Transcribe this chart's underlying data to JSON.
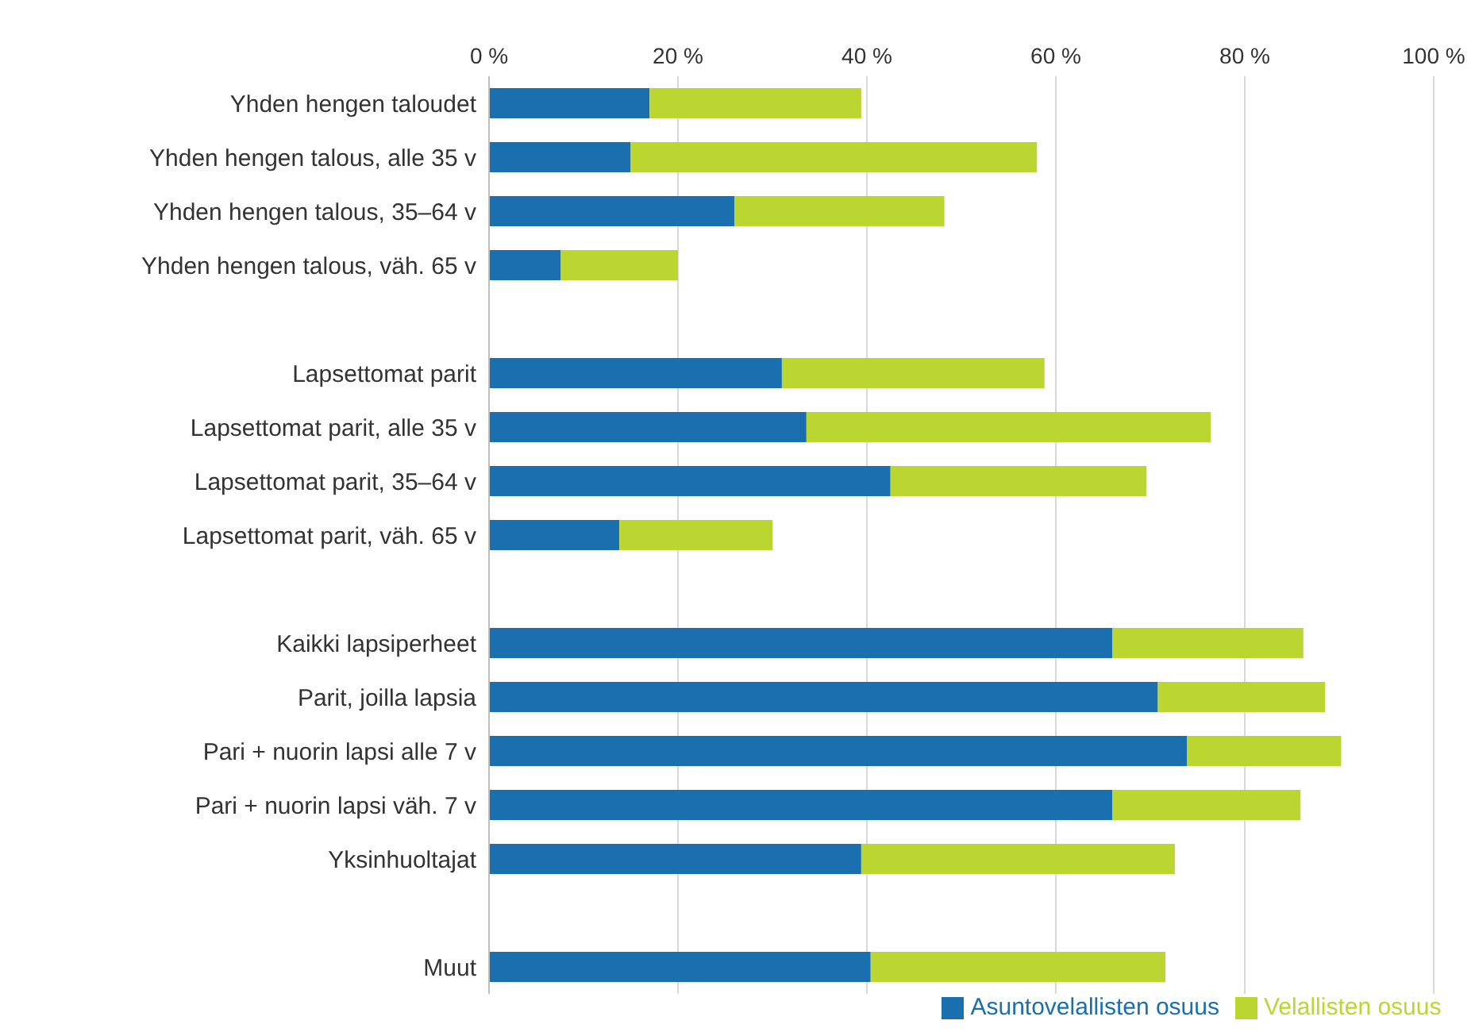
{
  "chart_data": {
    "type": "bar",
    "orientation": "horizontal",
    "stacked": true,
    "categories": [
      "Yhden hengen taloudet",
      "Yhden hengen talous, alle 35 v",
      "Yhden hengen talous, 35–64 v",
      "Yhden hengen talous, väh. 65 v",
      null,
      "Lapsettomat parit",
      "Lapsettomat parit, alle 35 v",
      "Lapsettomat parit, 35–64 v",
      "Lapsettomat parit, väh. 65 v",
      null,
      "Kaikki lapsiperheet",
      "Parit, joilla lapsia",
      "Pari + nuorin lapsi alle 7 v",
      "Pari + nuorin lapsi väh. 7 v",
      "Yksinhuoltajat",
      null,
      "Muut"
    ],
    "series": [
      {
        "name": "Asuntovelallisten osuus",
        "color": "#1a6faf",
        "values": [
          17,
          15,
          26,
          7.6,
          null,
          31,
          33.6,
          42.5,
          13.8,
          null,
          66,
          70.8,
          73.9,
          66,
          39.4,
          null,
          40.4
        ]
      },
      {
        "name": "Velallisten osuus",
        "color": "#bcd631",
        "values": [
          22.4,
          43,
          22.2,
          12.4,
          null,
          27.8,
          42.8,
          27.1,
          16.2,
          null,
          20.2,
          17.7,
          16.3,
          19.9,
          33.2,
          null,
          31.2
        ]
      }
    ],
    "xlim": [
      0,
      100
    ],
    "xticks": [
      {
        "value": 0,
        "label": "0 %"
      },
      {
        "value": 20,
        "label": "20 %"
      },
      {
        "value": 40,
        "label": "40 %"
      },
      {
        "value": 60,
        "label": "60 %"
      },
      {
        "value": 80,
        "label": "80 %"
      },
      {
        "value": 100,
        "label": "100 %"
      }
    ],
    "grid": "x",
    "legend": "bottom"
  }
}
